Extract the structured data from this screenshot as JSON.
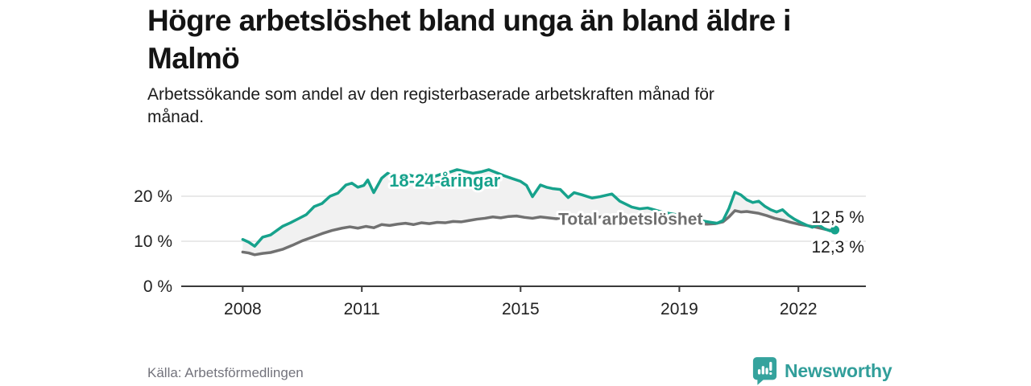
{
  "header": {
    "title_lines": [
      "Högre arbetslöshet bland unga än bland äldre i",
      "Malmö"
    ],
    "subtitle_lines": [
      "Arbetssökande som andel av den registerbaserade arbetskraften månad för",
      "månad."
    ]
  },
  "footer": {
    "source": "Källa: Arbetsförmedlingen",
    "brand": "Newsworthy"
  },
  "colors": {
    "youth_line": "#17a28c",
    "total_line": "#717171",
    "fill_between": "#f1f1f1",
    "gridline": "#dcdcdc",
    "axis": "#3a3a3a",
    "tick_text": "#222222",
    "annotation_text": "#1a1a1a",
    "brand_teal": "#319e9a"
  },
  "chart_data": {
    "type": "line",
    "unit": "%",
    "grid": "horizontal",
    "legend_position": "inline-labels",
    "xlim": [
      2006.45,
      2023.7
    ],
    "ylim": [
      0,
      27
    ],
    "x_ticks": [
      {
        "v": 2008,
        "label": "2008"
      },
      {
        "v": 2011,
        "label": "2011"
      },
      {
        "v": 2015,
        "label": "2015"
      },
      {
        "v": 2019,
        "label": "2019"
      },
      {
        "v": 2022,
        "label": "2022"
      }
    ],
    "y_ticks": [
      {
        "v": 0,
        "label": "0 %"
      },
      {
        "v": 10,
        "label": "10 %"
      },
      {
        "v": 20,
        "label": "20 %"
      }
    ],
    "fill_between_color": "#f1f1f1",
    "series": [
      {
        "name": "18-24-åringar",
        "color": "#17a28c",
        "width": 3.5,
        "end_dot": true,
        "last_value_label": "12,5 %",
        "points": [
          [
            2008.0,
            10.4
          ],
          [
            2008.15,
            9.8
          ],
          [
            2008.3,
            8.9
          ],
          [
            2008.5,
            10.9
          ],
          [
            2008.7,
            11.4
          ],
          [
            2009.0,
            13.3
          ],
          [
            2009.2,
            14.1
          ],
          [
            2009.4,
            15.0
          ],
          [
            2009.6,
            15.9
          ],
          [
            2009.8,
            17.7
          ],
          [
            2010.0,
            18.4
          ],
          [
            2010.2,
            20.0
          ],
          [
            2010.4,
            20.7
          ],
          [
            2010.6,
            22.5
          ],
          [
            2010.75,
            22.9
          ],
          [
            2010.9,
            22.0
          ],
          [
            2011.05,
            22.4
          ],
          [
            2011.15,
            23.6
          ],
          [
            2011.3,
            20.8
          ],
          [
            2011.5,
            24.0
          ],
          [
            2011.65,
            25.1
          ],
          [
            2011.8,
            24.4
          ],
          [
            2012.0,
            24.0
          ],
          [
            2012.2,
            24.7
          ],
          [
            2012.4,
            24.2
          ],
          [
            2012.6,
            24.8
          ],
          [
            2012.8,
            24.3
          ],
          [
            2013.0,
            24.9
          ],
          [
            2013.2,
            25.3
          ],
          [
            2013.4,
            25.9
          ],
          [
            2013.6,
            25.5
          ],
          [
            2013.8,
            25.1
          ],
          [
            2014.0,
            25.4
          ],
          [
            2014.2,
            25.9
          ],
          [
            2014.4,
            25.2
          ],
          [
            2014.6,
            24.5
          ],
          [
            2014.8,
            23.9
          ],
          [
            2015.0,
            23.3
          ],
          [
            2015.15,
            22.4
          ],
          [
            2015.3,
            19.9
          ],
          [
            2015.5,
            22.5
          ],
          [
            2015.65,
            22.0
          ],
          [
            2015.8,
            21.7
          ],
          [
            2016.0,
            21.5
          ],
          [
            2016.2,
            19.7
          ],
          [
            2016.35,
            20.8
          ],
          [
            2016.55,
            20.3
          ],
          [
            2016.8,
            19.6
          ],
          [
            2017.0,
            19.9
          ],
          [
            2017.3,
            20.5
          ],
          [
            2017.5,
            18.9
          ],
          [
            2017.8,
            17.6
          ],
          [
            2018.0,
            17.2
          ],
          [
            2018.2,
            17.4
          ],
          [
            2018.4,
            16.9
          ],
          [
            2018.6,
            16.4
          ],
          [
            2018.8,
            16.1
          ],
          [
            2019.0,
            15.8
          ],
          [
            2019.2,
            15.3
          ],
          [
            2019.4,
            14.9
          ],
          [
            2019.6,
            14.5
          ],
          [
            2019.8,
            14.2
          ],
          [
            2019.95,
            14.0
          ],
          [
            2020.1,
            14.6
          ],
          [
            2020.25,
            17.3
          ],
          [
            2020.4,
            20.9
          ],
          [
            2020.55,
            20.3
          ],
          [
            2020.7,
            19.2
          ],
          [
            2020.85,
            18.6
          ],
          [
            2021.0,
            18.9
          ],
          [
            2021.15,
            17.8
          ],
          [
            2021.3,
            17.0
          ],
          [
            2021.45,
            16.5
          ],
          [
            2021.6,
            17.0
          ],
          [
            2021.75,
            15.8
          ],
          [
            2021.9,
            14.9
          ],
          [
            2022.05,
            14.2
          ],
          [
            2022.2,
            13.6
          ],
          [
            2022.35,
            13.1
          ],
          [
            2022.5,
            13.7
          ],
          [
            2022.65,
            12.8
          ],
          [
            2022.8,
            12.3
          ],
          [
            2022.92,
            12.5
          ]
        ]
      },
      {
        "name": "Total arbetslöshet",
        "color": "#717171",
        "width": 3.5,
        "end_dot": false,
        "last_value_label": "12,3 %",
        "points": [
          [
            2008.0,
            7.6
          ],
          [
            2008.15,
            7.4
          ],
          [
            2008.3,
            7.0
          ],
          [
            2008.5,
            7.3
          ],
          [
            2008.7,
            7.5
          ],
          [
            2009.0,
            8.2
          ],
          [
            2009.25,
            9.1
          ],
          [
            2009.5,
            10.1
          ],
          [
            2009.75,
            10.9
          ],
          [
            2010.0,
            11.7
          ],
          [
            2010.25,
            12.4
          ],
          [
            2010.5,
            12.9
          ],
          [
            2010.7,
            13.2
          ],
          [
            2010.9,
            12.9
          ],
          [
            2011.1,
            13.3
          ],
          [
            2011.3,
            13.0
          ],
          [
            2011.5,
            13.7
          ],
          [
            2011.7,
            13.5
          ],
          [
            2011.9,
            13.8
          ],
          [
            2012.1,
            14.0
          ],
          [
            2012.3,
            13.7
          ],
          [
            2012.5,
            14.1
          ],
          [
            2012.7,
            13.9
          ],
          [
            2012.9,
            14.2
          ],
          [
            2013.1,
            14.1
          ],
          [
            2013.3,
            14.4
          ],
          [
            2013.5,
            14.3
          ],
          [
            2013.7,
            14.6
          ],
          [
            2013.9,
            14.9
          ],
          [
            2014.1,
            15.1
          ],
          [
            2014.3,
            15.4
          ],
          [
            2014.5,
            15.2
          ],
          [
            2014.7,
            15.5
          ],
          [
            2014.9,
            15.6
          ],
          [
            2015.1,
            15.3
          ],
          [
            2015.3,
            15.1
          ],
          [
            2015.5,
            15.4
          ],
          [
            2015.7,
            15.2
          ],
          [
            2015.9,
            15.0
          ],
          [
            2016.1,
            15.3
          ],
          [
            2016.3,
            15.1
          ],
          [
            2016.5,
            15.3
          ],
          [
            2016.7,
            15.5
          ],
          [
            2016.9,
            15.3
          ],
          [
            2017.1,
            15.5
          ],
          [
            2017.3,
            15.6
          ],
          [
            2017.5,
            15.3
          ],
          [
            2017.7,
            15.1
          ],
          [
            2017.9,
            15.0
          ],
          [
            2018.1,
            14.9
          ],
          [
            2018.3,
            14.7
          ],
          [
            2018.5,
            14.8
          ],
          [
            2018.7,
            14.5
          ],
          [
            2018.9,
            14.3
          ],
          [
            2019.1,
            14.2
          ],
          [
            2019.3,
            14.0
          ],
          [
            2019.5,
            13.9
          ],
          [
            2019.7,
            13.8
          ],
          [
            2019.9,
            13.9
          ],
          [
            2020.1,
            14.3
          ],
          [
            2020.25,
            15.4
          ],
          [
            2020.4,
            16.8
          ],
          [
            2020.55,
            16.5
          ],
          [
            2020.7,
            16.6
          ],
          [
            2020.85,
            16.4
          ],
          [
            2021.0,
            16.2
          ],
          [
            2021.2,
            15.7
          ],
          [
            2021.4,
            15.1
          ],
          [
            2021.6,
            14.7
          ],
          [
            2021.8,
            14.2
          ],
          [
            2022.0,
            13.8
          ],
          [
            2022.2,
            13.5
          ],
          [
            2022.4,
            13.2
          ],
          [
            2022.6,
            12.8
          ],
          [
            2022.75,
            12.5
          ],
          [
            2022.92,
            12.3
          ]
        ]
      }
    ],
    "annotations": [
      {
        "text": "18-24-åringar",
        "x": 2011.69,
        "y": 22.1,
        "color": "#17a28c",
        "bold": true,
        "size": 22,
        "halo": true
      },
      {
        "text": "Total arbetslöshet",
        "x": 2015.95,
        "y": 13.7,
        "color": "#6e6e6e",
        "bold": true,
        "size": 21,
        "halo": true
      },
      {
        "text": "12,5 %",
        "x": 2022.33,
        "y": 14.1,
        "color": "#1a1a1a",
        "bold": false,
        "size": 21,
        "halo": true
      },
      {
        "text": "12,3 %",
        "x": 2022.33,
        "y": 7.5,
        "color": "#1a1a1a",
        "bold": false,
        "size": 21,
        "halo": true
      }
    ]
  }
}
